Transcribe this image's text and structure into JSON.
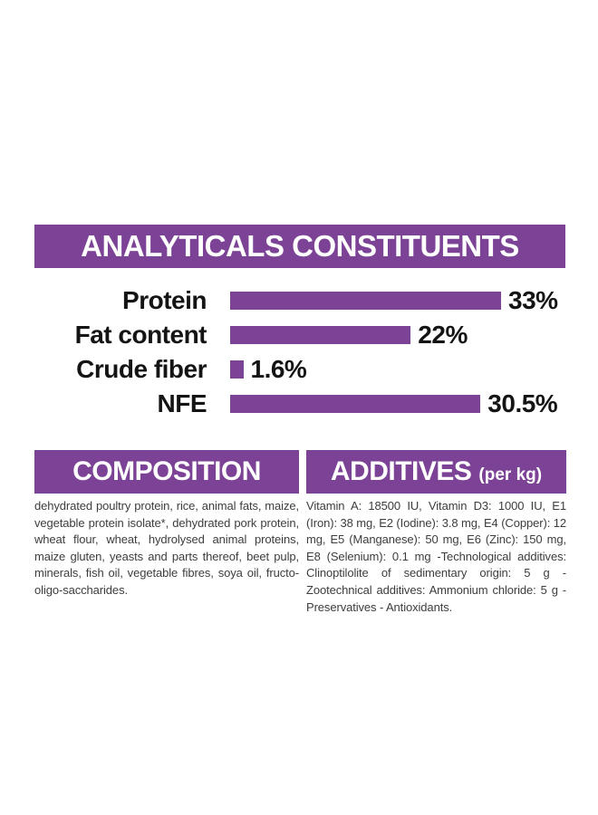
{
  "colors": {
    "brand_purple": "#7b4296",
    "body_text": "#3d3d3d",
    "chart_text": "#141414",
    "background": "#ffffff"
  },
  "analyticals": {
    "title": "ANALYTICALS CONSTITUENTS"
  },
  "chart_data": {
    "type": "bar",
    "orientation": "horizontal",
    "title": "ANALYTICALS CONSTITUENTS",
    "categories": [
      "Protein",
      "Fat content",
      "Crude fiber",
      "NFE"
    ],
    "values": [
      33,
      22,
      1.6,
      30.5
    ],
    "value_labels": [
      "33%",
      "22%",
      "1.6%",
      "30.5%"
    ],
    "unit": "%",
    "xlim": [
      0,
      33
    ],
    "grid": false,
    "legend": false,
    "bar_color": "#7b4296"
  },
  "composition": {
    "title": "COMPOSITION",
    "text": "dehydrated poultry protein, rice, animal fats, maize, vegetable protein isolate*, dehydrated pork protein, wheat flour, wheat, hydrolysed animal proteins, maize gluten, yeasts and parts thereof, beet pulp, minerals, fish oil, vegetable fibres, soya oil, fructo-oligo-saccharides."
  },
  "additives": {
    "title": "ADDITIVES",
    "unit_suffix": "(per kg)",
    "text": "Vitamin A: 18500 IU, Vitamin D3: 1000 IU, E1 (Iron): 38 mg, E2 (Iodine): 3.8 mg, E4 (Copper): 12 mg, E5 (Manganese): 50 mg, E6 (Zinc): 150 mg, E8 (Selenium): 0.1 mg -Technological additives: Clinoptilolite of sedimentary origin: 5 g - Zootechnical additives: Ammonium chloride: 5 g - Preservatives - Antioxidants."
  }
}
